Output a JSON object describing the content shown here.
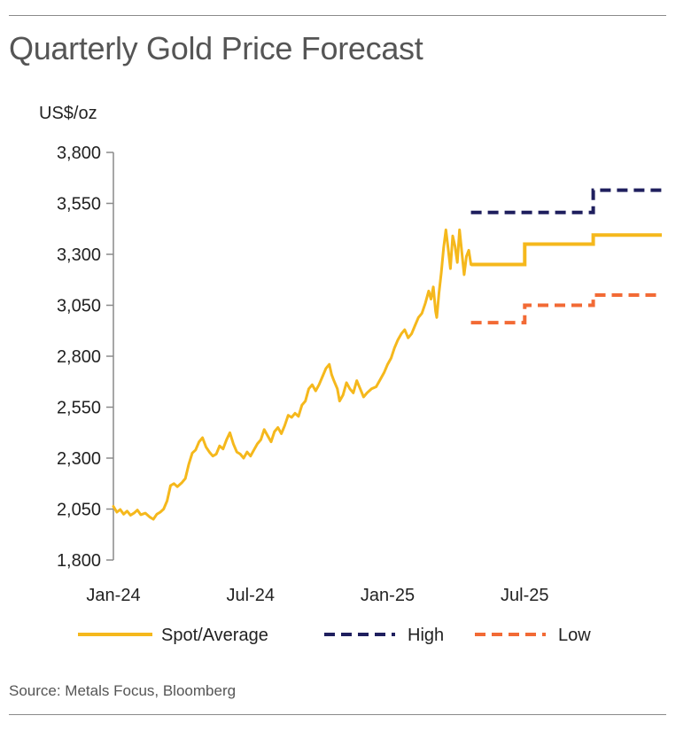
{
  "header": {
    "title": "Quarterly Gold Price Forecast"
  },
  "footer": {
    "source": "Source: Metals Focus, Bloomberg"
  },
  "colors": {
    "spot": "#F5B81C",
    "high": "#1F1F5E",
    "low": "#F26A35",
    "axis": "#8a8a8a",
    "rule": "#8a8a8a"
  },
  "chart_data": {
    "type": "line",
    "title": "Quarterly Gold Price Forecast",
    "ylabel": "US$/oz",
    "xlabel": "",
    "ylim": [
      1800,
      3800
    ],
    "y_ticks": [
      1800,
      2050,
      2300,
      2550,
      2800,
      3050,
      3300,
      3550,
      3800
    ],
    "y_tick_labels": [
      "1,800",
      "2,050",
      "2,300",
      "2,550",
      "2,800",
      "3,050",
      "3,300",
      "3,550",
      "3,800"
    ],
    "x_tick_labels": [
      "Jan-24",
      "Jul-24",
      "Jan-25",
      "Jul-25"
    ],
    "x_tick_month_index": [
      0,
      6,
      12,
      18
    ],
    "x_range_months": [
      0,
      24
    ],
    "legend": {
      "position": "bottom",
      "entries": [
        "Spot/Average",
        "High",
        "Low"
      ]
    },
    "series": [
      {
        "name": "Spot/Average",
        "style": "solid",
        "spot_points": [
          [
            0.0,
            2063
          ],
          [
            0.15,
            2035
          ],
          [
            0.3,
            2048
          ],
          [
            0.45,
            2025
          ],
          [
            0.6,
            2040
          ],
          [
            0.75,
            2020
          ],
          [
            0.9,
            2030
          ],
          [
            1.05,
            2045
          ],
          [
            1.2,
            2022
          ],
          [
            1.4,
            2030
          ],
          [
            1.6,
            2010
          ],
          [
            1.75,
            2000
          ],
          [
            1.9,
            2025
          ],
          [
            2.05,
            2035
          ],
          [
            2.2,
            2050
          ],
          [
            2.35,
            2090
          ],
          [
            2.5,
            2165
          ],
          [
            2.65,
            2175
          ],
          [
            2.8,
            2160
          ],
          [
            3.0,
            2180
          ],
          [
            3.15,
            2200
          ],
          [
            3.3,
            2270
          ],
          [
            3.45,
            2325
          ],
          [
            3.6,
            2340
          ],
          [
            3.75,
            2380
          ],
          [
            3.9,
            2400
          ],
          [
            4.05,
            2355
          ],
          [
            4.2,
            2330
          ],
          [
            4.35,
            2310
          ],
          [
            4.5,
            2320
          ],
          [
            4.65,
            2360
          ],
          [
            4.8,
            2345
          ],
          [
            4.95,
            2390
          ],
          [
            5.1,
            2425
          ],
          [
            5.25,
            2370
          ],
          [
            5.4,
            2330
          ],
          [
            5.55,
            2320
          ],
          [
            5.7,
            2300
          ],
          [
            5.85,
            2330
          ],
          [
            6.0,
            2310
          ],
          [
            6.15,
            2340
          ],
          [
            6.3,
            2370
          ],
          [
            6.45,
            2390
          ],
          [
            6.6,
            2440
          ],
          [
            6.75,
            2410
          ],
          [
            6.9,
            2380
          ],
          [
            7.05,
            2430
          ],
          [
            7.2,
            2450
          ],
          [
            7.35,
            2420
          ],
          [
            7.5,
            2460
          ],
          [
            7.65,
            2510
          ],
          [
            7.8,
            2500
          ],
          [
            7.95,
            2520
          ],
          [
            8.1,
            2505
          ],
          [
            8.25,
            2560
          ],
          [
            8.4,
            2580
          ],
          [
            8.55,
            2640
          ],
          [
            8.7,
            2660
          ],
          [
            8.85,
            2630
          ],
          [
            9.0,
            2660
          ],
          [
            9.15,
            2700
          ],
          [
            9.3,
            2740
          ],
          [
            9.45,
            2760
          ],
          [
            9.55,
            2710
          ],
          [
            9.65,
            2680
          ],
          [
            9.8,
            2640
          ],
          [
            9.9,
            2580
          ],
          [
            10.05,
            2610
          ],
          [
            10.2,
            2670
          ],
          [
            10.35,
            2640
          ],
          [
            10.5,
            2620
          ],
          [
            10.65,
            2680
          ],
          [
            10.8,
            2640
          ],
          [
            10.95,
            2600
          ],
          [
            11.1,
            2620
          ],
          [
            11.3,
            2640
          ],
          [
            11.5,
            2650
          ],
          [
            11.7,
            2690
          ],
          [
            11.85,
            2720
          ],
          [
            12.0,
            2760
          ],
          [
            12.15,
            2790
          ],
          [
            12.3,
            2840
          ],
          [
            12.45,
            2880
          ],
          [
            12.6,
            2910
          ],
          [
            12.75,
            2930
          ],
          [
            12.9,
            2890
          ],
          [
            13.05,
            2910
          ],
          [
            13.2,
            2950
          ],
          [
            13.35,
            2990
          ],
          [
            13.5,
            3010
          ],
          [
            13.65,
            3060
          ],
          [
            13.8,
            3120
          ],
          [
            13.9,
            3080
          ],
          [
            14.0,
            3140
          ],
          [
            14.1,
            3020
          ],
          [
            14.15,
            2990
          ],
          [
            14.25,
            3110
          ],
          [
            14.35,
            3210
          ],
          [
            14.45,
            3330
          ],
          [
            14.55,
            3420
          ],
          [
            14.65,
            3330
          ],
          [
            14.75,
            3230
          ],
          [
            14.85,
            3390
          ],
          [
            14.95,
            3340
          ],
          [
            15.05,
            3260
          ],
          [
            15.15,
            3420
          ],
          [
            15.25,
            3310
          ],
          [
            15.35,
            3200
          ],
          [
            15.45,
            3290
          ],
          [
            15.55,
            3320
          ],
          [
            15.65,
            3250
          ]
        ],
        "steps": [
          {
            "from": 15.65,
            "to": 18.0,
            "value": 3250
          },
          {
            "from": 18.0,
            "to": 21.0,
            "value": 3350
          },
          {
            "from": 21.0,
            "to": 24.0,
            "value": 3395
          }
        ]
      },
      {
        "name": "High",
        "style": "dashed",
        "steps": [
          {
            "from": 15.65,
            "to": 21.0,
            "value": 3505
          },
          {
            "from": 21.0,
            "to": 24.0,
            "value": 3615
          }
        ]
      },
      {
        "name": "Low",
        "style": "dashed",
        "steps": [
          {
            "from": 15.65,
            "to": 18.0,
            "value": 2965
          },
          {
            "from": 18.0,
            "to": 21.0,
            "value": 3050
          },
          {
            "from": 21.0,
            "to": 24.0,
            "value": 3100
          }
        ]
      }
    ]
  }
}
